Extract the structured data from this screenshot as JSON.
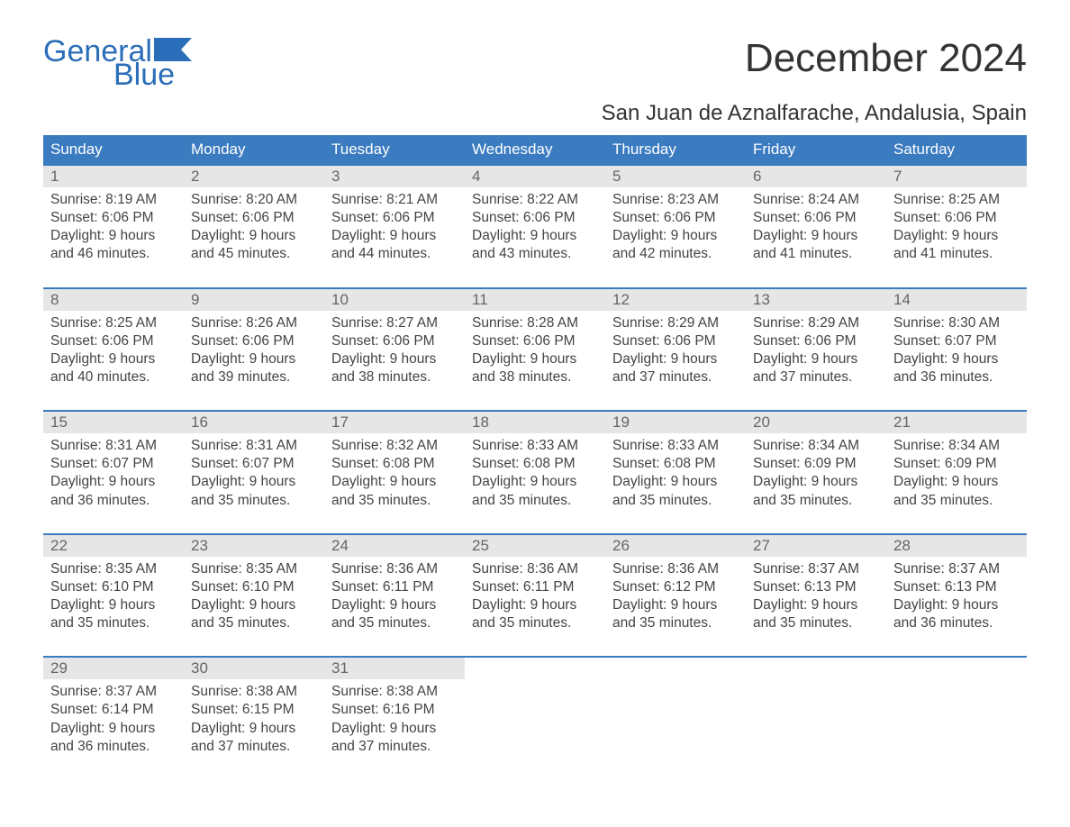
{
  "colors": {
    "brand": "#2a6db8",
    "header_bg": "#3b7bc0",
    "daynum_bg": "#e6e6e6",
    "text": "#444444",
    "text_light": "#666666",
    "page_bg": "#ffffff"
  },
  "typography": {
    "body_font": "Arial, Helvetica, sans-serif",
    "month_title_size_pt": 33,
    "location_size_pt": 18,
    "dow_size_pt": 13,
    "daynum_size_pt": 13,
    "details_size_pt": 12
  },
  "logo": {
    "text_general": "General",
    "text_blue": "Blue"
  },
  "month_title": "December 2024",
  "location": "San Juan de Aznalfarache, Andalusia, Spain",
  "days_of_week": [
    "Sunday",
    "Monday",
    "Tuesday",
    "Wednesday",
    "Thursday",
    "Friday",
    "Saturday"
  ],
  "calendar": {
    "type": "table",
    "columns": [
      "Sunday",
      "Monday",
      "Tuesday",
      "Wednesday",
      "Thursday",
      "Friday",
      "Saturday"
    ],
    "weeks": [
      [
        {
          "day": "1",
          "sunrise": "Sunrise: 8:19 AM",
          "sunset": "Sunset: 6:06 PM",
          "daylight1": "Daylight: 9 hours",
          "daylight2": "and 46 minutes."
        },
        {
          "day": "2",
          "sunrise": "Sunrise: 8:20 AM",
          "sunset": "Sunset: 6:06 PM",
          "daylight1": "Daylight: 9 hours",
          "daylight2": "and 45 minutes."
        },
        {
          "day": "3",
          "sunrise": "Sunrise: 8:21 AM",
          "sunset": "Sunset: 6:06 PM",
          "daylight1": "Daylight: 9 hours",
          "daylight2": "and 44 minutes."
        },
        {
          "day": "4",
          "sunrise": "Sunrise: 8:22 AM",
          "sunset": "Sunset: 6:06 PM",
          "daylight1": "Daylight: 9 hours",
          "daylight2": "and 43 minutes."
        },
        {
          "day": "5",
          "sunrise": "Sunrise: 8:23 AM",
          "sunset": "Sunset: 6:06 PM",
          "daylight1": "Daylight: 9 hours",
          "daylight2": "and 42 minutes."
        },
        {
          "day": "6",
          "sunrise": "Sunrise: 8:24 AM",
          "sunset": "Sunset: 6:06 PM",
          "daylight1": "Daylight: 9 hours",
          "daylight2": "and 41 minutes."
        },
        {
          "day": "7",
          "sunrise": "Sunrise: 8:25 AM",
          "sunset": "Sunset: 6:06 PM",
          "daylight1": "Daylight: 9 hours",
          "daylight2": "and 41 minutes."
        }
      ],
      [
        {
          "day": "8",
          "sunrise": "Sunrise: 8:25 AM",
          "sunset": "Sunset: 6:06 PM",
          "daylight1": "Daylight: 9 hours",
          "daylight2": "and 40 minutes."
        },
        {
          "day": "9",
          "sunrise": "Sunrise: 8:26 AM",
          "sunset": "Sunset: 6:06 PM",
          "daylight1": "Daylight: 9 hours",
          "daylight2": "and 39 minutes."
        },
        {
          "day": "10",
          "sunrise": "Sunrise: 8:27 AM",
          "sunset": "Sunset: 6:06 PM",
          "daylight1": "Daylight: 9 hours",
          "daylight2": "and 38 minutes."
        },
        {
          "day": "11",
          "sunrise": "Sunrise: 8:28 AM",
          "sunset": "Sunset: 6:06 PM",
          "daylight1": "Daylight: 9 hours",
          "daylight2": "and 38 minutes."
        },
        {
          "day": "12",
          "sunrise": "Sunrise: 8:29 AM",
          "sunset": "Sunset: 6:06 PM",
          "daylight1": "Daylight: 9 hours",
          "daylight2": "and 37 minutes."
        },
        {
          "day": "13",
          "sunrise": "Sunrise: 8:29 AM",
          "sunset": "Sunset: 6:06 PM",
          "daylight1": "Daylight: 9 hours",
          "daylight2": "and 37 minutes."
        },
        {
          "day": "14",
          "sunrise": "Sunrise: 8:30 AM",
          "sunset": "Sunset: 6:07 PM",
          "daylight1": "Daylight: 9 hours",
          "daylight2": "and 36 minutes."
        }
      ],
      [
        {
          "day": "15",
          "sunrise": "Sunrise: 8:31 AM",
          "sunset": "Sunset: 6:07 PM",
          "daylight1": "Daylight: 9 hours",
          "daylight2": "and 36 minutes."
        },
        {
          "day": "16",
          "sunrise": "Sunrise: 8:31 AM",
          "sunset": "Sunset: 6:07 PM",
          "daylight1": "Daylight: 9 hours",
          "daylight2": "and 35 minutes."
        },
        {
          "day": "17",
          "sunrise": "Sunrise: 8:32 AM",
          "sunset": "Sunset: 6:08 PM",
          "daylight1": "Daylight: 9 hours",
          "daylight2": "and 35 minutes."
        },
        {
          "day": "18",
          "sunrise": "Sunrise: 8:33 AM",
          "sunset": "Sunset: 6:08 PM",
          "daylight1": "Daylight: 9 hours",
          "daylight2": "and 35 minutes."
        },
        {
          "day": "19",
          "sunrise": "Sunrise: 8:33 AM",
          "sunset": "Sunset: 6:08 PM",
          "daylight1": "Daylight: 9 hours",
          "daylight2": "and 35 minutes."
        },
        {
          "day": "20",
          "sunrise": "Sunrise: 8:34 AM",
          "sunset": "Sunset: 6:09 PM",
          "daylight1": "Daylight: 9 hours",
          "daylight2": "and 35 minutes."
        },
        {
          "day": "21",
          "sunrise": "Sunrise: 8:34 AM",
          "sunset": "Sunset: 6:09 PM",
          "daylight1": "Daylight: 9 hours",
          "daylight2": "and 35 minutes."
        }
      ],
      [
        {
          "day": "22",
          "sunrise": "Sunrise: 8:35 AM",
          "sunset": "Sunset: 6:10 PM",
          "daylight1": "Daylight: 9 hours",
          "daylight2": "and 35 minutes."
        },
        {
          "day": "23",
          "sunrise": "Sunrise: 8:35 AM",
          "sunset": "Sunset: 6:10 PM",
          "daylight1": "Daylight: 9 hours",
          "daylight2": "and 35 minutes."
        },
        {
          "day": "24",
          "sunrise": "Sunrise: 8:36 AM",
          "sunset": "Sunset: 6:11 PM",
          "daylight1": "Daylight: 9 hours",
          "daylight2": "and 35 minutes."
        },
        {
          "day": "25",
          "sunrise": "Sunrise: 8:36 AM",
          "sunset": "Sunset: 6:11 PM",
          "daylight1": "Daylight: 9 hours",
          "daylight2": "and 35 minutes."
        },
        {
          "day": "26",
          "sunrise": "Sunrise: 8:36 AM",
          "sunset": "Sunset: 6:12 PM",
          "daylight1": "Daylight: 9 hours",
          "daylight2": "and 35 minutes."
        },
        {
          "day": "27",
          "sunrise": "Sunrise: 8:37 AM",
          "sunset": "Sunset: 6:13 PM",
          "daylight1": "Daylight: 9 hours",
          "daylight2": "and 35 minutes."
        },
        {
          "day": "28",
          "sunrise": "Sunrise: 8:37 AM",
          "sunset": "Sunset: 6:13 PM",
          "daylight1": "Daylight: 9 hours",
          "daylight2": "and 36 minutes."
        }
      ],
      [
        {
          "day": "29",
          "sunrise": "Sunrise: 8:37 AM",
          "sunset": "Sunset: 6:14 PM",
          "daylight1": "Daylight: 9 hours",
          "daylight2": "and 36 minutes."
        },
        {
          "day": "30",
          "sunrise": "Sunrise: 8:38 AM",
          "sunset": "Sunset: 6:15 PM",
          "daylight1": "Daylight: 9 hours",
          "daylight2": "and 37 minutes."
        },
        {
          "day": "31",
          "sunrise": "Sunrise: 8:38 AM",
          "sunset": "Sunset: 6:16 PM",
          "daylight1": "Daylight: 9 hours",
          "daylight2": "and 37 minutes."
        },
        null,
        null,
        null,
        null
      ]
    ]
  }
}
